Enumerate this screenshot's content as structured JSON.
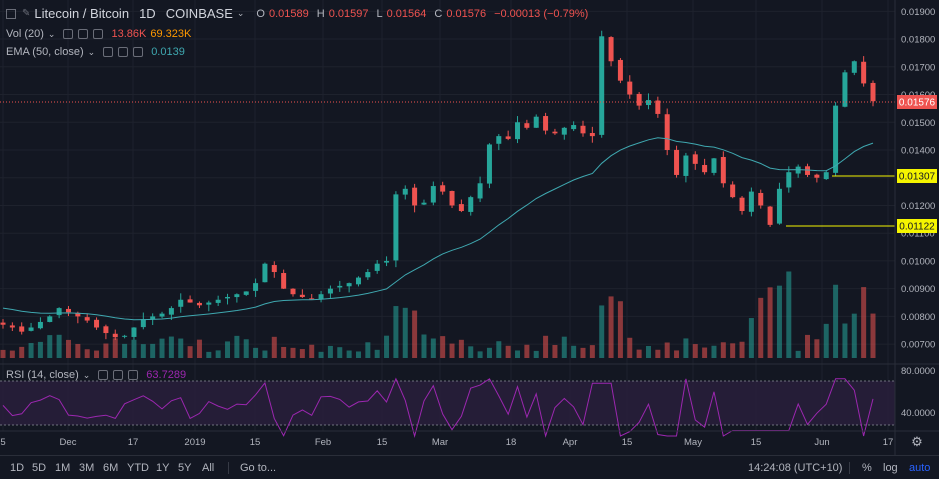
{
  "header": {
    "symbol": "Litecoin / Bitcoin",
    "interval": "1D",
    "exchange": "COINBASE",
    "o_key": "O",
    "o_val": "0.01589",
    "h_key": "H",
    "h_val": "0.01597",
    "l_key": "L",
    "l_val": "0.01564",
    "c_key": "C",
    "c_val": "0.01576",
    "change": "−0.00013 (−0.79%)"
  },
  "vol_legend": {
    "label": "Vol (20)",
    "v1": "13.86K",
    "v2": "69.323K"
  },
  "ema_legend": {
    "label": "EMA (50, close)",
    "value": "0.0139"
  },
  "rsi_legend": {
    "label": "RSI (14, close)",
    "value": "63.7289"
  },
  "bottom": {
    "ranges": [
      "1D",
      "5D",
      "1M",
      "3M",
      "6M",
      "YTD",
      "1Y",
      "5Y",
      "All"
    ],
    "goto": "Go to...",
    "time": "14:24:08 (UTC+10)",
    "pct": "%",
    "log": "log",
    "auto": "auto"
  },
  "colors": {
    "up": "#26a69a",
    "down": "#ef5350",
    "ema": "#3fa8b0",
    "rsi": "#9c27b0",
    "bg": "#131722",
    "grid": "#1e222d",
    "hline": "#f5f500"
  },
  "chart_data": [
    {
      "type": "candlestick",
      "title": "Litecoin / Bitcoin 1D COINBASE",
      "x_ticks": [
        "5",
        "Dec",
        "17",
        "2019",
        "15",
        "Feb",
        "15",
        "Mar",
        "18",
        "Apr",
        "15",
        "May",
        "15",
        "Jun",
        "17"
      ],
      "y_ticks": [
        "0.01900",
        "0.01800",
        "0.01700",
        "0.01600",
        "0.01500",
        "0.01400",
        "0.01300",
        "0.01200",
        "0.01100",
        "0.01000",
        "0.00900",
        "0.00800",
        "0.00700"
      ],
      "ylim": [
        0.0065,
        0.0193
      ],
      "last_price_label": "0.01576",
      "horizontal_lines": [
        "0.01307",
        "0.01122"
      ],
      "close_approx": [
        0.0077,
        0.0076,
        0.00745,
        0.0076,
        0.0078,
        0.008,
        0.0083,
        0.00815,
        0.008,
        0.00785,
        0.0076,
        0.0074,
        0.00725,
        0.0073,
        0.0076,
        0.0079,
        0.008,
        0.0081,
        0.0083,
        0.0086,
        0.0085,
        0.0084,
        0.0085,
        0.0086,
        0.0087,
        0.0088,
        0.0089,
        0.0092,
        0.0099,
        0.0096,
        0.009,
        0.0088,
        0.0087,
        0.00865,
        0.0088,
        0.009,
        0.0091,
        0.0092,
        0.0094,
        0.0096,
        0.0099,
        0.01,
        0.0124,
        0.0126,
        0.012,
        0.0121,
        0.0127,
        0.0125,
        0.012,
        0.0118,
        0.0123,
        0.0128,
        0.0142,
        0.0145,
        0.0144,
        0.015,
        0.0148,
        0.0152,
        0.0147,
        0.0146,
        0.0148,
        0.0149,
        0.0146,
        0.0145,
        0.0181,
        0.0172,
        0.0165,
        0.016,
        0.0156,
        0.0158,
        0.0153,
        0.014,
        0.0131,
        0.0138,
        0.0135,
        0.0132,
        0.0137,
        0.0128,
        0.0123,
        0.0118,
        0.0125,
        0.012,
        0.0113,
        0.0126,
        0.0132,
        0.0134,
        0.0131,
        0.013,
        0.0132,
        0.0156,
        0.0168,
        0.0172,
        0.0164,
        0.01576
      ],
      "ema_approx_range": [
        0.0083,
        0.0139
      ],
      "volume": {
        "label": "Vol (20)",
        "values_approx_relative": "bars in lower pane, spikes near Feb, Apr and May-Jun"
      },
      "rsi": {
        "label": "RSI (14, close)",
        "y_ticks": [
          "80.0000",
          "40.0000"
        ],
        "last": "63.7289"
      }
    }
  ]
}
